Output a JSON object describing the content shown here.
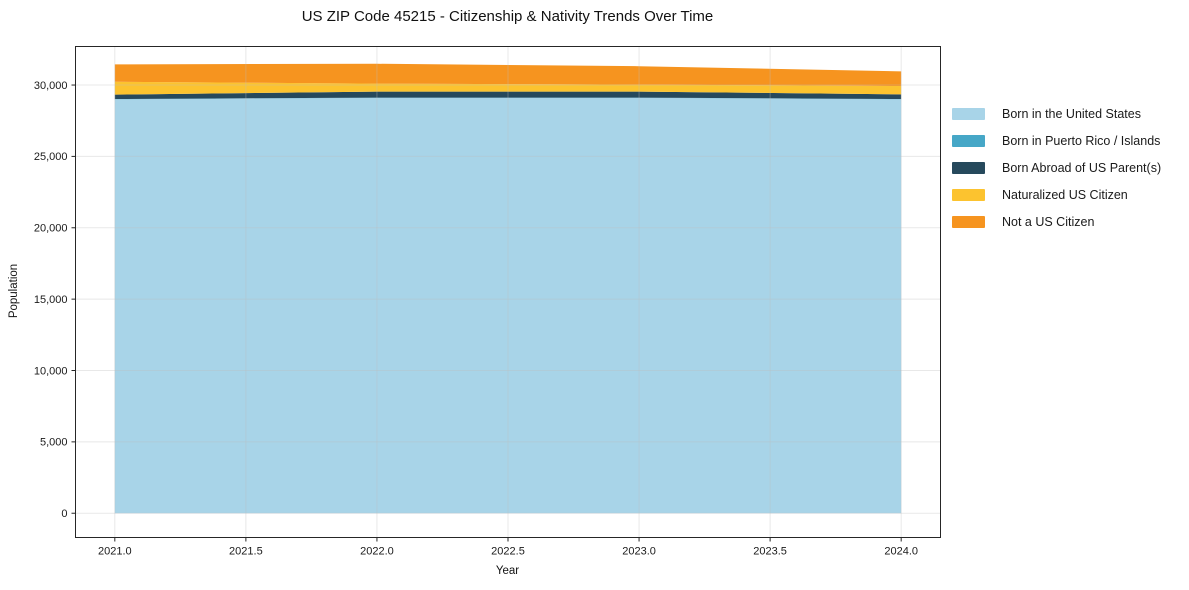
{
  "chart_data": {
    "type": "area",
    "stacked": true,
    "title": "US ZIP Code 45215 - Citizenship & Nativity Trends Over Time",
    "xlabel": "Year",
    "ylabel": "Population",
    "x": [
      2021,
      2022,
      2023,
      2024
    ],
    "series": [
      {
        "name": "Born in the United States",
        "color": "#a8d4e8",
        "values": [
          29000,
          29100,
          29100,
          29000
        ]
      },
      {
        "name": "Born in Puerto Rico / Islands",
        "color": "#46a7c7",
        "values": [
          20,
          20,
          20,
          20
        ]
      },
      {
        "name": "Born Abroad of US Parent(s)",
        "color": "#26495c",
        "values": [
          310,
          420,
          420,
          330
        ]
      },
      {
        "name": "Naturalized US Citizen",
        "color": "#fcc32f",
        "values": [
          900,
          560,
          490,
          580
        ]
      },
      {
        "name": "Not a US Citizen",
        "color": "#f6941f",
        "values": [
          1220,
          1390,
          1290,
          1030
        ]
      }
    ],
    "totals": [
      31450,
      31490,
      31320,
      30960
    ],
    "xticks": [
      2021.0,
      2021.5,
      2022.0,
      2022.5,
      2023.0,
      2023.5,
      2024.0
    ],
    "xtick_labels": [
      "2021.0",
      "2021.5",
      "2022.0",
      "2022.5",
      "2023.0",
      "2023.5",
      "2024.0"
    ],
    "yticks": [
      0,
      5000,
      10000,
      15000,
      20000,
      25000,
      30000
    ],
    "ytick_labels": [
      "0",
      "5,000",
      "10,000",
      "15,000",
      "20,000",
      "25,000",
      "30,000"
    ],
    "xlim": [
      2020.85,
      2024.15
    ],
    "ylim": [
      -1700,
      32700
    ],
    "grid": true,
    "legend_position": "right-outside",
    "spine_color": "#262626",
    "grid_color": "#bdbdbd",
    "background_color": "#ffffff"
  }
}
